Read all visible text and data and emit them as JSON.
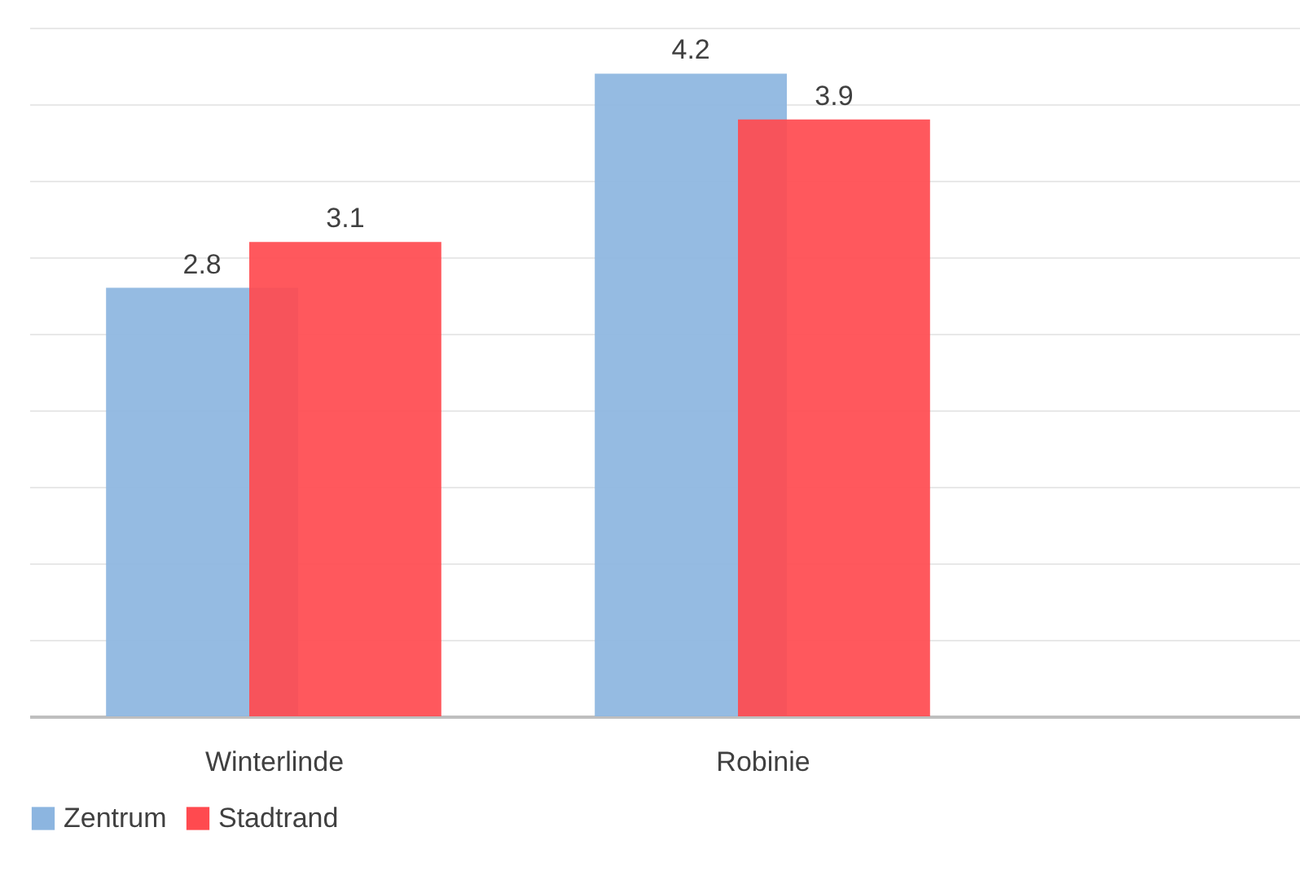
{
  "chart_data": {
    "type": "bar",
    "categories": [
      "Winterlinde",
      "Robinie"
    ],
    "series": [
      {
        "name": "Zentrum",
        "color": "#8cb5e0",
        "values": [
          2.8,
          4.2
        ]
      },
      {
        "name": "Stadtrand",
        "color": "#ff4a4f",
        "values": [
          3.1,
          3.9
        ]
      }
    ],
    "ylim": [
      0,
      4.5
    ],
    "yticks": [
      {
        "value": 0,
        "label": null
      },
      {
        "value": 0.5,
        "label": null
      },
      {
        "value": 1,
        "label": null
      },
      {
        "value": 1.5,
        "label": null
      },
      {
        "value": 2,
        "label": null
      },
      {
        "value": 2.5,
        "label": null
      },
      {
        "value": 3,
        "label": null
      },
      {
        "value": 3.5,
        "label": null
      },
      {
        "value": 4,
        "label": null
      },
      {
        "value": 4.5,
        "label": null
      }
    ],
    "grid": "y",
    "tick_labels": "x",
    "data_labels": true,
    "legend": "bottom"
  }
}
